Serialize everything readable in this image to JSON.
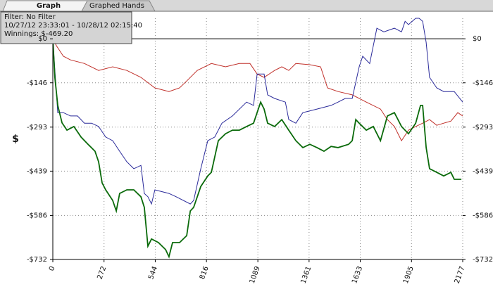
{
  "tabs": [
    "Graph",
    "Graphed Hands"
  ],
  "info": [
    "Filter: No Filter",
    "10/27/12 23:33:01 - 10/28/12 02:15:40",
    "Winnings: $-469.20"
  ],
  "chart_data": {
    "type": "line",
    "ylabel": "$",
    "xlim": [
      0,
      2177
    ],
    "xticks": [
      0,
      272,
      544,
      816,
      1089,
      1361,
      1633,
      1905,
      2177
    ],
    "ylim": [
      -732,
      68
    ],
    "yticks": [
      {
        "value": 0,
        "label": "$0"
      },
      {
        "value": -146,
        "label": "-$146"
      },
      {
        "value": -293,
        "label": "-$293"
      },
      {
        "value": -439,
        "label": "-$439"
      },
      {
        "value": -586,
        "label": "-$586"
      },
      {
        "value": -732,
        "label": "-$732"
      }
    ],
    "grid": true,
    "series": [
      {
        "color": "#c0302a",
        "width": 1,
        "x": [
          0,
          19,
          56,
          94,
          168,
          243,
          318,
          393,
          468,
          542,
          617,
          673,
          711,
          767,
          842,
          917,
          991,
          1047,
          1085,
          1122,
          1178,
          1216,
          1253,
          1291,
          1365,
          1422,
          1459,
          1515,
          1590,
          1665,
          1740,
          1777,
          1814,
          1852,
          1889,
          1927,
          1964,
          2001,
          2039,
          2076,
          2114,
          2151,
          2177
        ],
        "values": [
          0,
          -23,
          -58,
          -70,
          -82,
          -105,
          -93,
          -105,
          -128,
          -163,
          -175,
          -163,
          -140,
          -105,
          -82,
          -93,
          -82,
          -82,
          -117,
          -128,
          -105,
          -93,
          -105,
          -82,
          -86,
          -93,
          -163,
          -175,
          -186,
          -210,
          -233,
          -268,
          -291,
          -338,
          -303,
          -291,
          -280,
          -268,
          -287,
          -280,
          -273,
          -245,
          -256
        ]
      },
      {
        "color": "#2a2a9a",
        "width": 1,
        "x": [
          0,
          11,
          26,
          56,
          94,
          131,
          168,
          206,
          243,
          281,
          318,
          355,
          393,
          430,
          468,
          486,
          505,
          524,
          542,
          617,
          655,
          730,
          748,
          786,
          823,
          860,
          898,
          954,
          1029,
          1066,
          1085,
          1122,
          1141,
          1178,
          1235,
          1253,
          1291,
          1328,
          1403,
          1478,
          1515,
          1553,
          1590,
          1627,
          1646,
          1683,
          1721,
          1758,
          1814,
          1852,
          1871,
          1889,
          1927,
          1945,
          1964,
          1983,
          2001,
          2039,
          2076,
          2132,
          2177
        ],
        "values": [
          0,
          -105,
          -245,
          -245,
          -256,
          -256,
          -280,
          -280,
          -291,
          -326,
          -338,
          -373,
          -408,
          -431,
          -420,
          -513,
          -524,
          -548,
          -501,
          -513,
          -524,
          -548,
          -536,
          -431,
          -338,
          -326,
          -280,
          -256,
          -210,
          -221,
          -117,
          -117,
          -186,
          -198,
          -210,
          -268,
          -280,
          -245,
          -233,
          -221,
          -210,
          -198,
          -198,
          -93,
          -58,
          -82,
          35,
          23,
          35,
          23,
          58,
          47,
          68,
          68,
          58,
          -12,
          -128,
          -163,
          -175,
          -175,
          -210
        ]
      },
      {
        "color": "#0a6a0a",
        "width": 1.8,
        "x": [
          0,
          11,
          26,
          49,
          75,
          112,
          150,
          187,
          224,
          243,
          262,
          281,
          318,
          337,
          355,
          393,
          430,
          468,
          486,
          505,
          524,
          561,
          599,
          617,
          636,
          673,
          711,
          730,
          748,
          786,
          823,
          842,
          879,
          917,
          954,
          991,
          1029,
          1066,
          1104,
          1122,
          1141,
          1178,
          1216,
          1253,
          1291,
          1328,
          1365,
          1403,
          1440,
          1478,
          1515,
          1571,
          1590,
          1609,
          1627,
          1665,
          1702,
          1740,
          1777,
          1814,
          1852,
          1889,
          1927,
          1953,
          1964,
          1983,
          2001,
          2039,
          2076,
          2114,
          2132,
          2170
        ],
        "values": [
          0,
          -128,
          -221,
          -279,
          -303,
          -291,
          -326,
          -350,
          -373,
          -408,
          -478,
          -501,
          -536,
          -571,
          -513,
          -501,
          -501,
          -524,
          -559,
          -688,
          -664,
          -676,
          -699,
          -723,
          -676,
          -676,
          -653,
          -571,
          -559,
          -490,
          -455,
          -443,
          -338,
          -315,
          -303,
          -303,
          -291,
          -280,
          -210,
          -233,
          -280,
          -291,
          -268,
          -303,
          -338,
          -361,
          -350,
          -361,
          -373,
          -357,
          -361,
          -350,
          -338,
          -268,
          -280,
          -303,
          -291,
          -338,
          -256,
          -245,
          -291,
          -315,
          -280,
          -221,
          -221,
          -361,
          -431,
          -443,
          -455,
          -443,
          -466,
          -466
        ]
      }
    ]
  }
}
